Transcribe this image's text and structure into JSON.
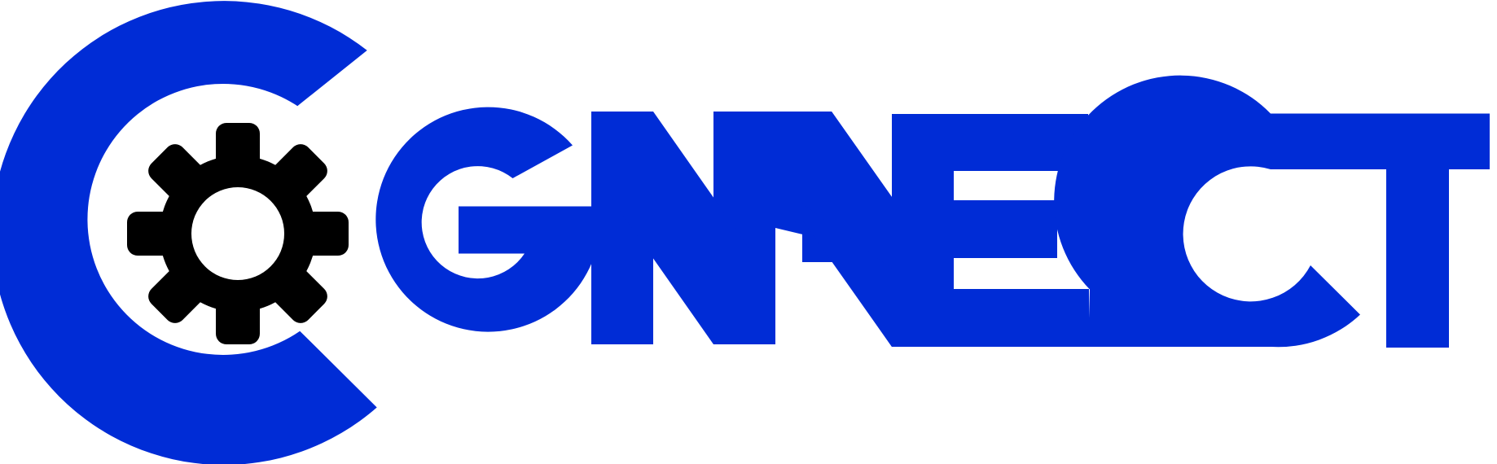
{
  "logo": {
    "wordmark": "CGNNECT",
    "colors": {
      "brand_blue": "#002cd6",
      "gear": "#000000",
      "background": "#ffffff"
    },
    "icon": "gear-icon"
  }
}
